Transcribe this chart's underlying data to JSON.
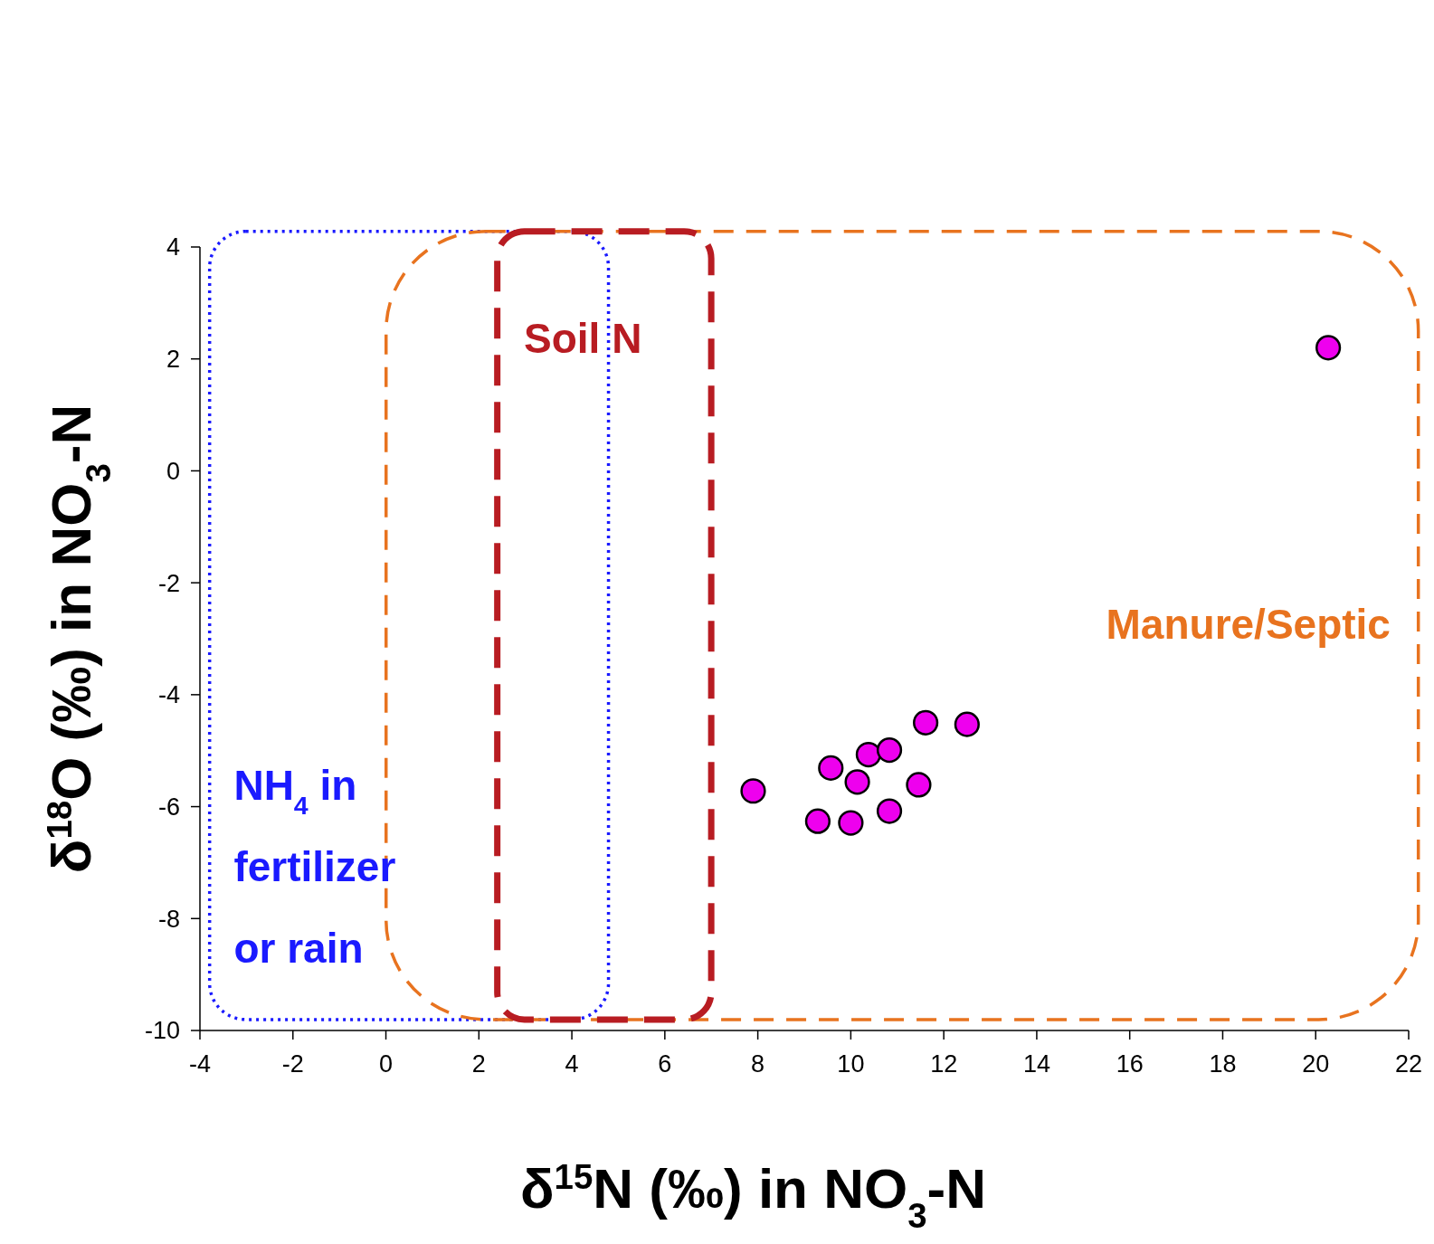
{
  "chart_data": {
    "type": "scatter",
    "xlabel": "δ$^{15}$N (‰) in NO$_{3}$-N",
    "ylabel": "δ$^{18}$O (‰) in NO$_{3}$-N",
    "xlim": [
      -4,
      22
    ],
    "ylim": [
      -10,
      4
    ],
    "xticks": [
      -4,
      -2,
      0,
      2,
      4,
      6,
      8,
      10,
      12,
      14,
      16,
      18,
      20,
      22
    ],
    "yticks": [
      -10,
      -8,
      -6,
      -4,
      -2,
      0,
      2,
      4
    ],
    "grid": false,
    "marker": "circle",
    "series": [
      {
        "color": "#ee00ee",
        "x": [
          20.27,
          7.9,
          9.57,
          10.38,
          10.83,
          11.61,
          12.5,
          10.14,
          11.46,
          9.29,
          10.0,
          10.83
        ],
        "values": [
          2.2,
          -5.72,
          -5.31,
          -5.07,
          -4.99,
          -4.5,
          -4.53,
          -5.56,
          -5.61,
          -6.26,
          -6.29,
          -6.08
        ]
      }
    ],
    "annotations": [
      "Soil N",
      "Manure/Septic",
      "NH$_{4}$ in fertilizer or rain"
    ]
  }
}
